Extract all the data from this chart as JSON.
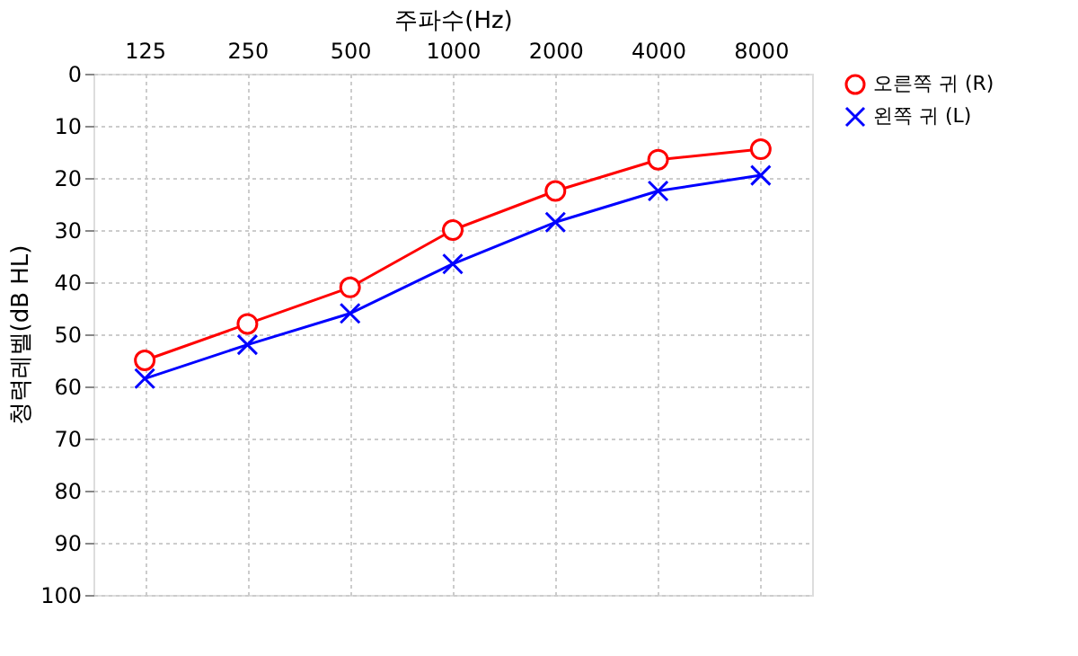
{
  "chart_data": {
    "type": "line",
    "xlabel": "주파수(Hz)",
    "ylabel": "청력레벨(dB HL)",
    "categories": [
      "125",
      "250",
      "500",
      "1000",
      "2000",
      "4000",
      "8000"
    ],
    "ylim": [
      100,
      0
    ],
    "yticks": [
      0,
      10,
      20,
      30,
      40,
      50,
      60,
      70,
      80,
      90,
      100
    ],
    "grid": true,
    "legend": "right",
    "series": [
      {
        "name": "오른쪽 귀 (R)",
        "color": "#ff0000",
        "marker": "circle",
        "values": [
          55,
          48,
          41,
          30,
          22.5,
          16.5,
          14.5
        ]
      },
      {
        "name": "왼쪽 귀 (L)",
        "color": "#0000ff",
        "marker": "cross",
        "values": [
          58.5,
          52,
          46,
          36.5,
          28.5,
          22.5,
          19.5
        ]
      }
    ]
  }
}
